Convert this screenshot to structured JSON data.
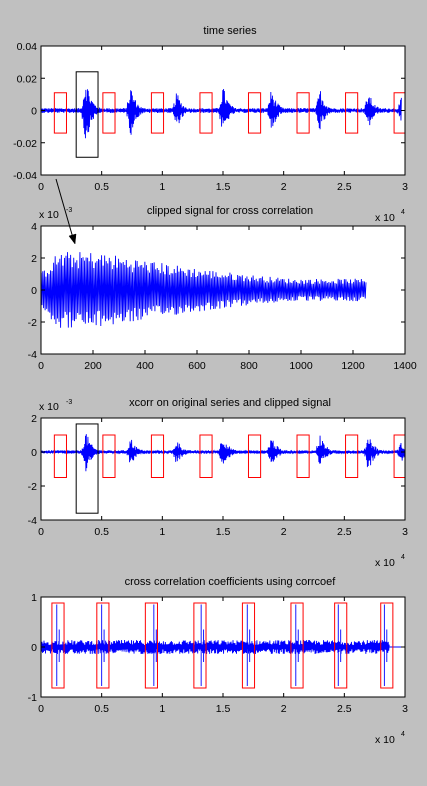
{
  "colors": {
    "figure_bg": "#c0c0c0",
    "axes_bg": "#ffffff",
    "signal": "#0000ff",
    "box_red": "#ff0000",
    "box_black": "#000000",
    "arrow": "#000000"
  },
  "chart_data": [
    {
      "type": "line",
      "title": "time series",
      "xlim": [
        0,
        3
      ],
      "x_multiplier": "x 10",
      "x_multiplier_exp": "4",
      "ylim": [
        -0.04,
        0.04
      ],
      "xticks": [
        "0",
        "0.5",
        "1",
        "1.5",
        "2",
        "2.5",
        "3"
      ],
      "yticks": [
        "-0.04",
        "-0.02",
        "0",
        "0.02",
        "0.04"
      ],
      "series": [
        {
          "color": "#0000ff",
          "bursts_x": [
            0.37,
            0.74,
            1.12,
            1.5,
            1.9,
            2.3,
            2.7,
            2.97
          ],
          "burst_peak_amp": [
            0.022,
            0.016,
            0.012,
            0.016,
            0.014,
            0.014,
            0.012,
            0.008
          ],
          "noise_amp": 0.0015,
          "x_end": 2.97
        }
      ],
      "red_boxes": [
        [
          0.11,
          0.21,
          -0.014,
          0.011
        ],
        [
          0.51,
          0.61,
          -0.014,
          0.011
        ],
        [
          0.91,
          1.01,
          -0.014,
          0.011
        ],
        [
          1.31,
          1.41,
          -0.014,
          0.011
        ],
        [
          1.71,
          1.81,
          -0.014,
          0.011
        ],
        [
          2.11,
          2.21,
          -0.014,
          0.011
        ],
        [
          2.51,
          2.61,
          -0.014,
          0.011
        ],
        [
          2.91,
          3.0,
          -0.014,
          0.011
        ]
      ],
      "black_boxes": [
        [
          0.29,
          0.47,
          -0.029,
          0.024
        ]
      ]
    },
    {
      "type": "line",
      "title": "clipped signal for cross correlation",
      "xlim": [
        0,
        1400
      ],
      "ylim": [
        -4,
        4
      ],
      "y_multiplier": "x 10",
      "y_multiplier_exp": "-3",
      "xticks": [
        "0",
        "200",
        "400",
        "600",
        "800",
        "1000",
        "1200",
        "1400"
      ],
      "yticks": [
        "-4",
        "-2",
        "0",
        "2",
        "4"
      ],
      "series": [
        {
          "color": "#0000ff",
          "x_start": 1,
          "x_end": 1250,
          "peak_amp": 2.4,
          "peak_x": 200,
          "floor_amp": 0.7
        }
      ]
    },
    {
      "type": "line",
      "title": "xcorr on original series and clipped signal",
      "xlim": [
        0,
        3
      ],
      "x_multiplier": "x 10",
      "x_multiplier_exp": "4",
      "ylim": [
        -4,
        2
      ],
      "y_multiplier": "x 10",
      "y_multiplier_exp": "-3",
      "xticks": [
        "0",
        "0.5",
        "1",
        "1.5",
        "2",
        "2.5",
        "3"
      ],
      "yticks": [
        "-4",
        "-2",
        "0",
        "2"
      ],
      "series": [
        {
          "color": "#0000ff",
          "bursts_x": [
            0.37,
            0.74,
            1.12,
            1.5,
            1.9,
            2.3,
            2.7,
            2.97
          ],
          "burst_peak_amp": [
            1.3,
            0.9,
            0.8,
            1.1,
            1.0,
            1.1,
            1.2,
            0.6
          ],
          "noise_amp": 0.1,
          "x_end": 3.0
        }
      ],
      "red_boxes": [
        [
          0.11,
          0.21,
          -1.5,
          1.0
        ],
        [
          0.51,
          0.61,
          -1.5,
          1.0
        ],
        [
          0.91,
          1.01,
          -1.5,
          1.0
        ],
        [
          1.31,
          1.41,
          -1.5,
          1.0
        ],
        [
          1.71,
          1.81,
          -1.5,
          1.0
        ],
        [
          2.11,
          2.21,
          -1.5,
          1.0
        ],
        [
          2.51,
          2.61,
          -1.5,
          1.0
        ],
        [
          2.91,
          3.0,
          -1.5,
          1.0
        ]
      ],
      "black_boxes": [
        [
          0.29,
          0.47,
          -3.6,
          1.65
        ]
      ]
    },
    {
      "type": "line",
      "title": "cross correlation coefficients using corrcoef",
      "xlim": [
        0,
        3
      ],
      "x_multiplier": "x 10",
      "x_multiplier_exp": "4",
      "ylim": [
        -1,
        1
      ],
      "xticks": [
        "0",
        "0.5",
        "1",
        "1.5",
        "2",
        "2.5",
        "3"
      ],
      "yticks": [
        "-1",
        "0",
        "1"
      ],
      "series": [
        {
          "color": "#0000ff",
          "spikes_x": [
            0.13,
            0.5,
            0.93,
            1.32,
            1.7,
            2.1,
            2.45,
            2.83
          ],
          "noise_amp": 0.1,
          "x_end": 2.87
        }
      ],
      "red_boxes": [
        [
          0.09,
          0.19,
          -0.82,
          0.88
        ],
        [
          0.46,
          0.56,
          -0.82,
          0.88
        ],
        [
          0.86,
          0.96,
          -0.82,
          0.88
        ],
        [
          1.26,
          1.36,
          -0.82,
          0.88
        ],
        [
          1.66,
          1.76,
          -0.82,
          0.88
        ],
        [
          2.06,
          2.16,
          -0.82,
          0.88
        ],
        [
          2.42,
          2.52,
          -0.82,
          0.88
        ],
        [
          2.8,
          2.9,
          -0.82,
          0.88
        ]
      ]
    }
  ]
}
